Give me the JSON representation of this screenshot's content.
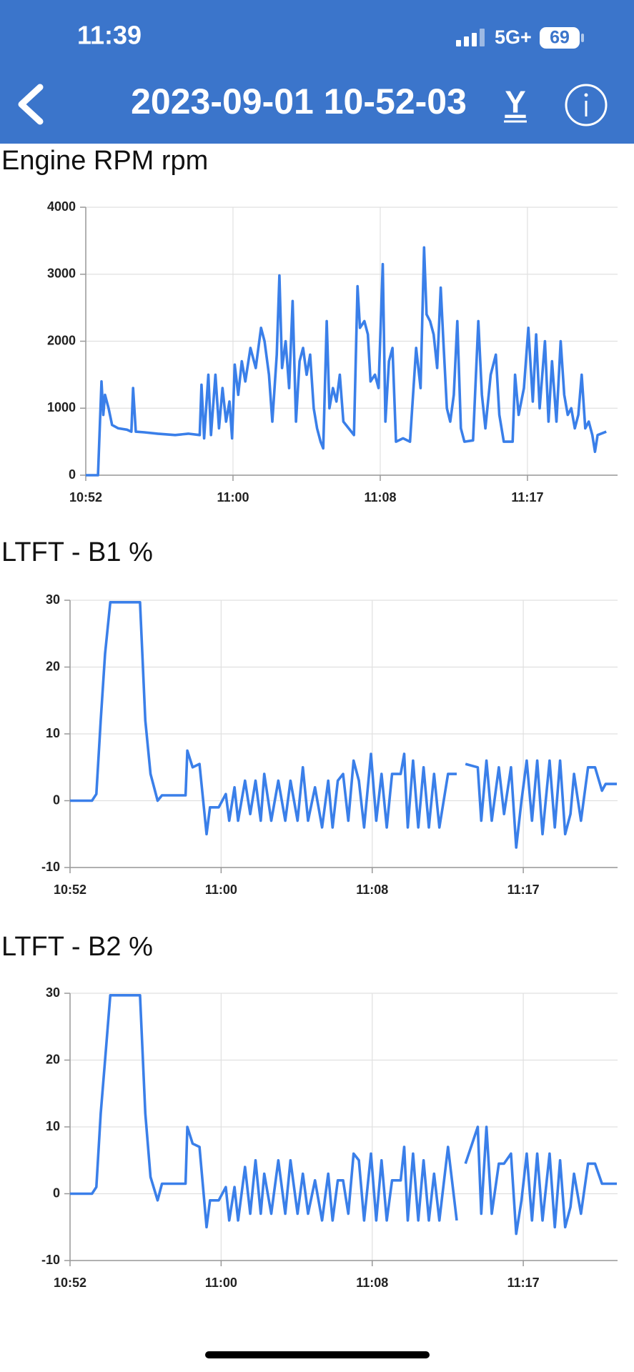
{
  "status_bar": {
    "time": "11:39",
    "network": "5G+",
    "battery": "69"
  },
  "header": {
    "title": "2023-09-01 10-52-03",
    "action": "Y"
  },
  "chart_data": [
    {
      "type": "line",
      "title": "Engine RPM rpm",
      "color": "#3a7fe9",
      "grid": true,
      "xlim": [
        652,
        682.1
      ],
      "xticks": [
        {
          "value": 652,
          "label": "10:52"
        },
        {
          "value": 660.333,
          "label": "11:00"
        },
        {
          "value": 668.667,
          "label": "11:08"
        },
        {
          "value": 677,
          "label": "11:17"
        }
      ],
      "ylim": [
        0,
        4000
      ],
      "yticks": [
        0,
        1000,
        2000,
        3000,
        4000
      ],
      "x": [
        652.0,
        652.69,
        652.89,
        652.99,
        653.09,
        653.29,
        653.49,
        653.84,
        654.33,
        654.58,
        654.68,
        654.83,
        655.32,
        656.07,
        657.06,
        657.8,
        658.45,
        658.55,
        658.7,
        658.94,
        659.09,
        659.34,
        659.54,
        659.74,
        659.94,
        660.13,
        660.28,
        660.43,
        660.63,
        660.83,
        661.03,
        661.32,
        661.62,
        661.92,
        662.12,
        662.37,
        662.56,
        662.81,
        662.96,
        663.11,
        663.31,
        663.51,
        663.71,
        663.9,
        664.1,
        664.3,
        664.5,
        664.7,
        664.9,
        665.09,
        665.29,
        665.44,
        665.64,
        665.79,
        665.99,
        666.19,
        666.38,
        666.58,
        666.88,
        667.18,
        667.38,
        667.52,
        667.77,
        667.97,
        668.12,
        668.37,
        668.57,
        668.81,
        668.96,
        669.16,
        669.36,
        669.56,
        669.96,
        670.35,
        670.7,
        670.95,
        671.15,
        671.29,
        671.49,
        671.69,
        671.89,
        672.09,
        672.24,
        672.44,
        672.63,
        672.83,
        673.03,
        673.23,
        673.43,
        673.92,
        674.22,
        674.42,
        674.62,
        674.92,
        675.21,
        675.41,
        675.66,
        676.16,
        676.3,
        676.5,
        676.8,
        677.05,
        677.3,
        677.49,
        677.69,
        677.99,
        678.19,
        678.39,
        678.64,
        678.88,
        679.08,
        679.28,
        679.48,
        679.68,
        679.88,
        680.07,
        680.27,
        680.47,
        680.67,
        680.82,
        680.97,
        681.46
      ],
      "values": [
        0,
        0,
        1400,
        900,
        1200,
        1000,
        750,
        700,
        680,
        650,
        1300,
        650,
        640,
        620,
        600,
        620,
        600,
        1350,
        550,
        1500,
        600,
        1500,
        700,
        1300,
        800,
        1100,
        550,
        1650,
        1200,
        1700,
        1400,
        1900,
        1600,
        2200,
        2000,
        1500,
        800,
        1800,
        2980,
        1600,
        2000,
        1300,
        2600,
        800,
        1700,
        1900,
        1500,
        1800,
        1000,
        700,
        500,
        400,
        2300,
        1000,
        1300,
        1100,
        1500,
        800,
        700,
        600,
        2820,
        2200,
        2300,
        2100,
        1400,
        1500,
        1300,
        3150,
        800,
        1700,
        1900,
        500,
        550,
        500,
        1900,
        1300,
        3400,
        2400,
        2300,
        2100,
        1600,
        2800,
        2000,
        1000,
        800,
        1200,
        2300,
        700,
        500,
        520,
        2300,
        1200,
        700,
        1500,
        1800,
        900,
        500,
        500,
        1500,
        900,
        1300,
        2200,
        1100,
        2100,
        1000,
        2000,
        800,
        1700,
        800,
        2000,
        1200,
        900,
        1000,
        700,
        900,
        1500,
        700,
        800,
        600,
        350,
        600,
        650
      ]
    },
    {
      "type": "line",
      "title": "LTFT - B1 %",
      "color": "#3a7fe9",
      "grid": true,
      "xlim": [
        652,
        682.2
      ],
      "xticks": [
        {
          "value": 652,
          "label": "10:52"
        },
        {
          "value": 660.333,
          "label": "11:00"
        },
        {
          "value": 668.667,
          "label": "11:08"
        },
        {
          "value": 677,
          "label": "11:17"
        }
      ],
      "ylim": [
        -10,
        30
      ],
      "yticks": [
        -10,
        0,
        10,
        20,
        30
      ],
      "x": [
        652.0,
        653.21,
        653.45,
        653.69,
        653.93,
        654.22,
        655.86,
        656.15,
        656.44,
        656.83,
        657.07,
        658.37,
        658.47,
        658.76,
        659.14,
        659.53,
        659.72,
        660.2,
        660.59,
        660.78,
        661.07,
        661.27,
        661.65,
        661.94,
        662.23,
        662.52,
        662.71,
        663.1,
        663.49,
        663.87,
        664.16,
        664.55,
        664.84,
        665.13,
        665.51,
        665.9,
        666.24,
        666.48,
        666.77,
        667.06,
        667.35,
        667.64,
        667.93,
        668.22,
        668.6,
        668.89,
        669.18,
        669.47,
        669.76,
        670.24,
        670.43,
        670.63,
        670.92,
        671.21,
        671.5,
        671.79,
        672.08,
        672.37,
        672.85,
        673.33,
        673.57,
        673.81,
        674.49,
        674.68,
        674.97,
        675.26,
        675.65,
        675.94,
        676.32,
        676.61,
        676.9,
        677.19,
        677.48,
        677.77,
        678.06,
        678.45,
        678.74,
        679.03,
        679.31,
        679.6,
        679.8,
        680.18,
        680.57,
        680.96,
        681.34,
        681.54,
        682.16
      ],
      "values": [
        0,
        0,
        1,
        12,
        22,
        29.7,
        29.7,
        12,
        4,
        0,
        0.8,
        0.8,
        7.5,
        5,
        5.5,
        -5,
        -1,
        -1,
        1,
        -3,
        2,
        -3,
        3,
        -2,
        3,
        -3,
        4,
        -3,
        3,
        -3,
        3,
        -3,
        5,
        -3,
        2,
        -4,
        3,
        -4,
        3,
        4,
        -3,
        6,
        3,
        -4,
        7,
        -3,
        4,
        -4,
        4,
        4,
        7,
        -4,
        6,
        -4,
        5,
        -4,
        4,
        -4,
        4,
        4,
        null,
        5.5,
        5,
        -3,
        6,
        -3,
        5,
        -2,
        5,
        -7,
        0,
        6,
        -3,
        6,
        -5,
        6,
        -4,
        6,
        -5,
        -2,
        4,
        -3,
        5,
        5,
        1.5,
        2.5,
        2.5
      ]
    },
    {
      "type": "line",
      "title": "LTFT - B2 %",
      "color": "#3a7fe9",
      "grid": true,
      "xlim": [
        652,
        682.2
      ],
      "xticks": [
        {
          "value": 652,
          "label": "10:52"
        },
        {
          "value": 660.333,
          "label": "11:00"
        },
        {
          "value": 668.667,
          "label": "11:08"
        },
        {
          "value": 677,
          "label": "11:17"
        }
      ],
      "ylim": [
        -10,
        30
      ],
      "yticks": [
        -10,
        0,
        10,
        20,
        30
      ],
      "x": [
        652.0,
        653.21,
        653.45,
        653.69,
        653.93,
        654.22,
        655.86,
        656.15,
        656.44,
        656.83,
        657.07,
        658.37,
        658.47,
        658.76,
        659.14,
        659.53,
        659.72,
        660.2,
        660.59,
        660.78,
        661.07,
        661.27,
        661.65,
        661.94,
        662.23,
        662.52,
        662.71,
        663.1,
        663.49,
        663.87,
        664.16,
        664.55,
        664.84,
        665.13,
        665.51,
        665.9,
        666.24,
        666.48,
        666.77,
        667.06,
        667.35,
        667.64,
        667.93,
        668.22,
        668.6,
        668.89,
        669.18,
        669.47,
        669.76,
        670.24,
        670.43,
        670.63,
        670.92,
        671.21,
        671.5,
        671.79,
        672.08,
        672.37,
        672.85,
        673.33,
        673.57,
        673.81,
        674.49,
        674.68,
        674.97,
        675.26,
        675.65,
        675.94,
        676.32,
        676.61,
        676.9,
        677.19,
        677.48,
        677.77,
        678.06,
        678.45,
        678.74,
        679.03,
        679.31,
        679.6,
        679.8,
        680.18,
        680.57,
        680.96,
        681.34,
        681.54,
        682.16
      ],
      "values": [
        0,
        0,
        1,
        12,
        20,
        29.7,
        29.7,
        12,
        2.5,
        -1,
        1.5,
        1.5,
        10,
        7.5,
        7,
        -5,
        -1,
        -1,
        1,
        -4,
        1,
        -4,
        4,
        -3,
        5,
        -3,
        3,
        -3,
        5,
        -3,
        5,
        -3,
        3,
        -3,
        2,
        -4,
        3,
        -4,
        2,
        2,
        -3,
        6,
        5,
        -4,
        6,
        -4,
        5,
        -4,
        2,
        2,
        7,
        -4,
        6,
        -4,
        5,
        -4,
        3,
        -4,
        7,
        -4,
        null,
        4.5,
        10,
        -3,
        10,
        -3,
        4.5,
        4.5,
        6,
        -6,
        -1,
        6,
        -4,
        6,
        -4,
        6,
        -5,
        5,
        -5,
        -2,
        3,
        -3,
        4.5,
        4.5,
        1.5,
        1.5,
        1.5
      ]
    }
  ]
}
